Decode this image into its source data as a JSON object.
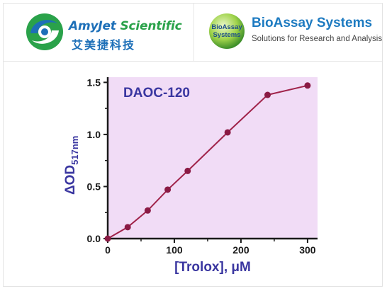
{
  "logos": {
    "amyjet": {
      "name_blue": "AmyJet ",
      "name_green": "Scientific",
      "chinese": "艾美捷科技",
      "icon": "amyjet-swirl-icon"
    },
    "bioassay": {
      "badge_line1": "BioAssay",
      "badge_line2": "Systems",
      "name": "BioAssay Systems",
      "tagline": "Solutions for Research and Analysis",
      "icon": "bioassay-sphere-icon"
    }
  },
  "chart_data": {
    "type": "line",
    "annotation": "DAOC-120",
    "xlabel": "[Trolox], μM",
    "ylabel_main": "ΔOD",
    "ylabel_sub": "517nm",
    "xlim": [
      0,
      315
    ],
    "ylim": [
      0,
      1.55
    ],
    "x_ticks": [
      0,
      100,
      200,
      300
    ],
    "y_ticks": [
      0.0,
      0.5,
      1.0,
      1.5
    ],
    "y_tick_labels": [
      "0.0",
      "0.5",
      "1.0",
      "1.5"
    ],
    "x_tick_labels": [
      "0",
      "100",
      "200",
      "300"
    ],
    "series": [
      {
        "x": [
          0,
          30,
          60,
          90,
          120,
          180,
          240,
          300
        ],
        "y": [
          0.0,
          0.11,
          0.27,
          0.47,
          0.65,
          1.02,
          1.38,
          1.47
        ]
      }
    ],
    "colors": {
      "plot_bg": "#f1dcf6",
      "line": "#a0234a",
      "point": "#8a1a44",
      "axis": "#1a1a1a",
      "label": "#3a36a0"
    },
    "grid": false
  }
}
